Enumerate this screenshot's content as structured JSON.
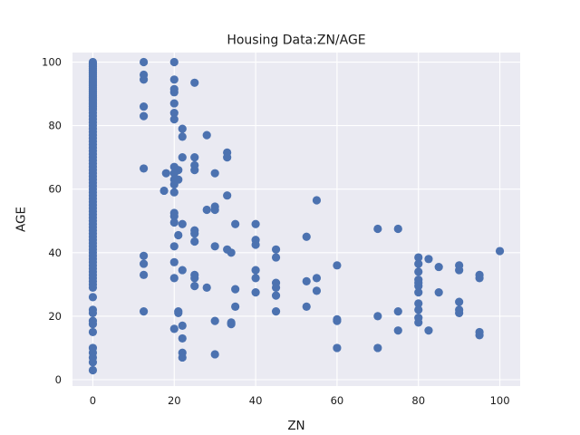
{
  "chart_data": {
    "type": "scatter",
    "title": "Housing Data:ZN/AGE",
    "xlabel": "ZN",
    "ylabel": "AGE",
    "xlim": [
      -5,
      105
    ],
    "ylim": [
      -2,
      103
    ],
    "xticks": [
      0,
      20,
      40,
      60,
      80,
      100
    ],
    "yticks": [
      0,
      20,
      40,
      60,
      80,
      100
    ],
    "grid": true,
    "style": {
      "background": "#eaeaf2",
      "grid_color": "#ffffff",
      "marker_color": "#4c72b0"
    },
    "series": [
      {
        "points": [
          [
            0,
            100
          ],
          [
            0,
            99.5
          ],
          [
            0,
            99
          ],
          [
            0,
            98.5
          ],
          [
            0,
            98
          ],
          [
            0,
            97.5
          ],
          [
            0,
            97
          ],
          [
            0,
            96.5
          ],
          [
            0,
            96
          ],
          [
            0,
            95.5
          ],
          [
            0,
            95
          ],
          [
            0,
            94.5
          ],
          [
            0,
            94
          ],
          [
            0,
            93.5
          ],
          [
            0,
            93
          ],
          [
            0,
            92.5
          ],
          [
            0,
            92
          ],
          [
            0,
            91.5
          ],
          [
            0,
            91
          ],
          [
            0,
            90.5
          ],
          [
            0,
            90
          ],
          [
            0,
            89.5
          ],
          [
            0,
            89
          ],
          [
            0,
            88.5
          ],
          [
            0,
            88
          ],
          [
            0,
            87.5
          ],
          [
            0,
            87
          ],
          [
            0,
            86.5
          ],
          [
            0,
            86
          ],
          [
            0,
            85.5
          ],
          [
            0,
            85
          ],
          [
            0,
            84
          ],
          [
            0,
            83
          ],
          [
            0,
            82
          ],
          [
            0,
            81
          ],
          [
            0,
            80
          ],
          [
            0,
            79
          ],
          [
            0,
            78
          ],
          [
            0,
            77
          ],
          [
            0,
            76
          ],
          [
            0,
            75
          ],
          [
            0,
            74
          ],
          [
            0,
            73
          ],
          [
            0,
            72
          ],
          [
            0,
            71
          ],
          [
            0,
            70
          ],
          [
            0,
            69
          ],
          [
            0,
            68
          ],
          [
            0,
            67
          ],
          [
            0,
            66
          ],
          [
            0,
            65
          ],
          [
            0,
            64
          ],
          [
            0,
            63
          ],
          [
            0,
            62
          ],
          [
            0,
            61
          ],
          [
            0,
            60
          ],
          [
            0,
            59
          ],
          [
            0,
            58
          ],
          [
            0,
            57
          ],
          [
            0,
            56
          ],
          [
            0,
            55
          ],
          [
            0,
            54
          ],
          [
            0,
            53
          ],
          [
            0,
            52
          ],
          [
            0,
            51
          ],
          [
            0,
            50
          ],
          [
            0,
            49
          ],
          [
            0,
            48
          ],
          [
            0,
            47
          ],
          [
            0,
            46
          ],
          [
            0,
            45
          ],
          [
            0,
            44
          ],
          [
            0,
            43
          ],
          [
            0,
            42
          ],
          [
            0,
            41
          ],
          [
            0,
            40
          ],
          [
            0,
            39
          ],
          [
            0,
            38
          ],
          [
            0,
            37
          ],
          [
            0,
            36
          ],
          [
            0,
            35
          ],
          [
            0,
            34
          ],
          [
            0,
            33
          ],
          [
            0,
            32
          ],
          [
            0,
            31
          ],
          [
            0,
            30
          ],
          [
            0,
            29
          ],
          [
            0,
            26
          ],
          [
            0,
            22
          ],
          [
            0,
            21
          ],
          [
            0,
            18.5
          ],
          [
            0,
            17.5
          ],
          [
            0,
            15
          ],
          [
            0,
            10
          ],
          [
            0,
            8.5
          ],
          [
            0,
            7
          ],
          [
            0,
            5.5
          ],
          [
            0,
            3
          ],
          [
            12.5,
            100
          ],
          [
            12.5,
            96
          ],
          [
            12.5,
            94.5
          ],
          [
            12.5,
            86
          ],
          [
            12.5,
            83
          ],
          [
            12.5,
            66.5
          ],
          [
            12.5,
            39
          ],
          [
            12.5,
            36.5
          ],
          [
            12.5,
            33
          ],
          [
            12.5,
            21.5
          ],
          [
            17.5,
            59.5
          ],
          [
            18,
            65
          ],
          [
            20,
            100
          ],
          [
            20,
            94.5
          ],
          [
            20,
            91.5
          ],
          [
            20,
            90.5
          ],
          [
            20,
            87
          ],
          [
            20,
            84
          ],
          [
            20,
            82
          ],
          [
            20,
            67
          ],
          [
            20,
            65
          ],
          [
            20,
            63
          ],
          [
            20,
            61.5
          ],
          [
            20,
            59
          ],
          [
            20,
            52.5
          ],
          [
            20,
            51.5
          ],
          [
            20,
            49.5
          ],
          [
            20,
            42
          ],
          [
            20,
            37
          ],
          [
            20,
            32
          ],
          [
            20,
            16
          ],
          [
            21,
            66
          ],
          [
            21,
            63
          ],
          [
            21,
            45.5
          ],
          [
            21,
            21.5
          ],
          [
            21,
            21
          ],
          [
            22,
            79
          ],
          [
            22,
            76.5
          ],
          [
            22,
            70
          ],
          [
            22,
            49
          ],
          [
            22,
            34.5
          ],
          [
            22,
            17
          ],
          [
            22,
            13
          ],
          [
            22,
            8.5
          ],
          [
            22,
            7
          ],
          [
            25,
            93.5
          ],
          [
            25,
            70
          ],
          [
            25,
            67.5
          ],
          [
            25,
            66
          ],
          [
            25,
            47
          ],
          [
            25,
            46
          ],
          [
            25,
            43.5
          ],
          [
            25,
            33
          ],
          [
            25,
            32
          ],
          [
            25,
            29.5
          ],
          [
            28,
            77
          ],
          [
            28,
            53.5
          ],
          [
            28,
            29
          ],
          [
            30,
            65
          ],
          [
            30,
            54.5
          ],
          [
            30,
            53.5
          ],
          [
            30,
            42
          ],
          [
            30,
            18.5
          ],
          [
            30,
            8
          ],
          [
            33,
            71.5
          ],
          [
            33,
            70
          ],
          [
            33,
            58
          ],
          [
            33,
            41
          ],
          [
            34,
            40
          ],
          [
            34,
            18
          ],
          [
            34,
            17.5
          ],
          [
            35,
            49
          ],
          [
            35,
            28.5
          ],
          [
            35,
            23
          ],
          [
            40,
            49
          ],
          [
            40,
            44
          ],
          [
            40,
            42.5
          ],
          [
            40,
            34.5
          ],
          [
            40,
            32
          ],
          [
            40,
            27.5
          ],
          [
            45,
            41
          ],
          [
            45,
            38.5
          ],
          [
            45,
            30.5
          ],
          [
            45,
            29
          ],
          [
            45,
            26.5
          ],
          [
            45,
            21.5
          ],
          [
            52.5,
            45
          ],
          [
            52.5,
            31
          ],
          [
            52.5,
            23
          ],
          [
            55,
            56.5
          ],
          [
            55,
            32
          ],
          [
            55,
            28
          ],
          [
            60,
            36
          ],
          [
            60,
            19
          ],
          [
            60,
            18.5
          ],
          [
            60,
            10
          ],
          [
            70,
            47.5
          ],
          [
            70,
            20
          ],
          [
            70,
            10
          ],
          [
            75,
            47.5
          ],
          [
            75,
            21.5
          ],
          [
            75,
            15.5
          ],
          [
            80,
            38.5
          ],
          [
            80,
            36.5
          ],
          [
            80,
            34
          ],
          [
            80,
            31.5
          ],
          [
            80,
            30.5
          ],
          [
            80,
            29.5
          ],
          [
            80,
            27.5
          ],
          [
            80,
            24
          ],
          [
            80,
            22
          ],
          [
            80,
            19.5
          ],
          [
            80,
            18
          ],
          [
            82.5,
            38
          ],
          [
            82.5,
            15.5
          ],
          [
            85,
            35.5
          ],
          [
            85,
            27.5
          ],
          [
            90,
            36
          ],
          [
            90,
            34.5
          ],
          [
            90,
            24.5
          ],
          [
            90,
            22
          ],
          [
            90,
            21
          ],
          [
            95,
            33
          ],
          [
            95,
            32
          ],
          [
            95,
            15
          ],
          [
            95,
            14
          ],
          [
            100,
            40.5
          ]
        ]
      }
    ]
  }
}
